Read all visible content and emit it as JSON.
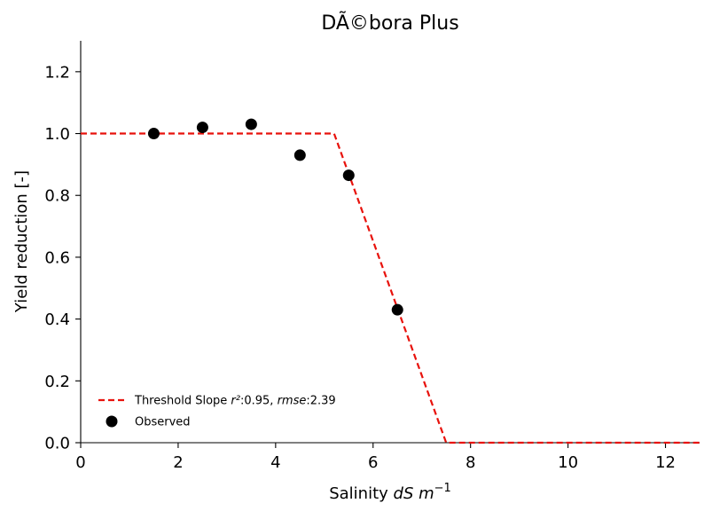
{
  "chart_data": {
    "type": "scatter",
    "title": "DÃ©bora Plus",
    "xlabel": {
      "prefix": "Salinity ",
      "math": "dS m",
      "sup": "−1"
    },
    "ylabel": "Yield reduction [-]",
    "xlim": [
      0,
      12.7
    ],
    "ylim": [
      0,
      1.3
    ],
    "xticks": [
      0,
      2,
      4,
      6,
      8,
      10,
      12
    ],
    "yticks": [
      0.0,
      0.2,
      0.4,
      0.6,
      0.8,
      1.0,
      1.2
    ],
    "xtick_labels": [
      "0",
      "2",
      "4",
      "6",
      "8",
      "10",
      "12"
    ],
    "ytick_labels": [
      "0.0",
      "0.2",
      "0.4",
      "0.6",
      "0.8",
      "1.0",
      "1.2"
    ],
    "grid": false,
    "legend_position": "lower-left",
    "series": [
      {
        "name": "Threshold Slope r²:0.95, rmse:2.39",
        "kind": "line",
        "style": "dashed",
        "color": "#e8120c",
        "x": [
          0,
          5.2,
          7.5,
          12.7
        ],
        "y": [
          1.0,
          1.0,
          0.0,
          0.0
        ]
      },
      {
        "name": "Observed",
        "kind": "scatter",
        "color": "#000000",
        "x": [
          1.5,
          2.5,
          3.5,
          4.5,
          5.5,
          6.5
        ],
        "y": [
          1.0,
          1.02,
          1.03,
          0.93,
          0.865,
          0.43
        ]
      }
    ],
    "legend": {
      "line_label": {
        "prefix": "Threshold Slope ",
        "r2": "r²",
        "r2_value": ":0.95, ",
        "rmse": "rmse",
        "rmse_value": ":2.39"
      },
      "scatter_label": "Observed"
    }
  }
}
